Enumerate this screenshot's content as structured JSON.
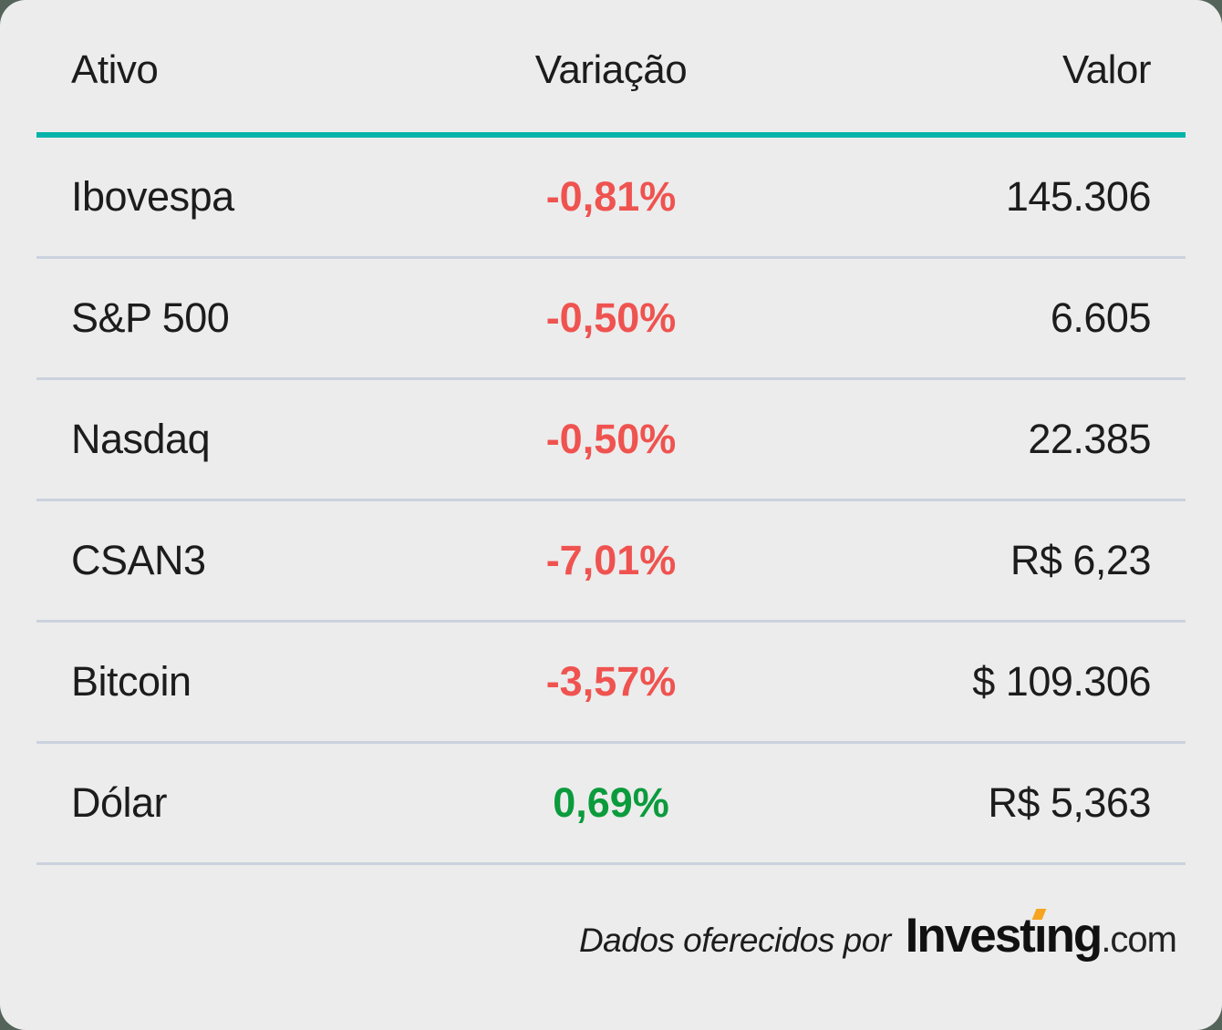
{
  "page": {
    "backdrop_color": "#55645a",
    "card_color": "#ececec"
  },
  "colors": {
    "accent_teal_rule": "#05b3aa",
    "negative_red": "#ef5350",
    "positive_green": "#0b9b3c",
    "row_divider": "#cbd2dd",
    "text": "#1c1c1c",
    "logo_tick_orange": "#f7a521"
  },
  "chart_data": {
    "type": "table",
    "columns": [
      "Ativo",
      "Variação",
      "Valor"
    ],
    "rows": [
      {
        "asset": "Ibovespa",
        "change": "-0,81%",
        "direction": "down",
        "value": "145.306"
      },
      {
        "asset": "S&P 500",
        "change": "-0,50%",
        "direction": "down",
        "value": "6.605"
      },
      {
        "asset": "Nasdaq",
        "change": "-0,50%",
        "direction": "down",
        "value": "22.385"
      },
      {
        "asset": "CSAN3",
        "change": "-7,01%",
        "direction": "down",
        "value": "R$ 6,23"
      },
      {
        "asset": "Bitcoin",
        "change": "-3,57%",
        "direction": "down",
        "value": "$ 109.306"
      },
      {
        "asset": "Dólar",
        "change": "0,69%",
        "direction": "up",
        "value": "R$ 5,363"
      }
    ]
  },
  "footer": {
    "credit_text": "Dados oferecidos por",
    "logo": {
      "part1": "Invest",
      "dotless_i": "ı",
      "part2": "ng",
      "suffix": ".com"
    }
  }
}
